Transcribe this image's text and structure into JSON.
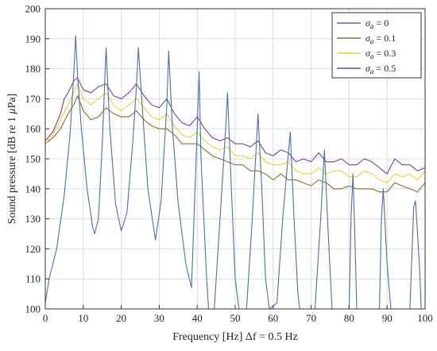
{
  "chart_data": {
    "type": "line",
    "xlabel": "Frequency [Hz] Δf = 0.5 Hz",
    "ylabel_parts": [
      "Sound pressure [dB re 1 ",
      "μ",
      "Pa]"
    ],
    "xlim": [
      0,
      100
    ],
    "ylim": [
      100,
      200
    ],
    "xticks": [
      0,
      10,
      20,
      30,
      40,
      50,
      60,
      70,
      80,
      90,
      100
    ],
    "yticks": [
      100,
      110,
      120,
      130,
      140,
      150,
      160,
      170,
      180,
      190,
      200
    ],
    "xtick_labels": [
      "0",
      "10",
      "20",
      "30",
      "40",
      "50",
      "60",
      "70",
      "80",
      "90",
      "100"
    ],
    "ytick_labels": [
      "100",
      "110",
      "120",
      "130",
      "140",
      "150",
      "160",
      "170",
      "180",
      "190",
      "200"
    ],
    "grid": true,
    "legend_position": "top-right",
    "series": [
      {
        "label_symbol": "σ",
        "label_sub": "a",
        "label_value": "= 0",
        "color": "#4a6fae",
        "points": [
          [
            0,
            102
          ],
          [
            1,
            110
          ],
          [
            3,
            120
          ],
          [
            5,
            138
          ],
          [
            6.5,
            158
          ],
          [
            7.5,
            178
          ],
          [
            8,
            191
          ],
          [
            8.5,
            178
          ],
          [
            9.5,
            160
          ],
          [
            11,
            140
          ],
          [
            12.5,
            127
          ],
          [
            13,
            125
          ],
          [
            14,
            130
          ],
          [
            15,
            155
          ],
          [
            16,
            187
          ],
          [
            17,
            160
          ],
          [
            18.5,
            135
          ],
          [
            20,
            126
          ],
          [
            21.5,
            132
          ],
          [
            23,
            155
          ],
          [
            24,
            174
          ],
          [
            24.5,
            187
          ],
          [
            25.5,
            168
          ],
          [
            27,
            140
          ],
          [
            29,
            123
          ],
          [
            30.5,
            136
          ],
          [
            32,
            168
          ],
          [
            32.5,
            186
          ],
          [
            33.5,
            160
          ],
          [
            35,
            135
          ],
          [
            37,
            115
          ],
          [
            38.5,
            107
          ],
          [
            40,
            160
          ],
          [
            40.5,
            179
          ],
          [
            41,
            150
          ],
          [
            42.5,
            110
          ],
          [
            43,
            100
          ],
          [
            44.5,
            100
          ],
          [
            46,
            130
          ],
          [
            47.5,
            160
          ],
          [
            48,
            172
          ],
          [
            49,
            140
          ],
          [
            50,
            110
          ],
          [
            51,
            100
          ],
          [
            53,
            100
          ],
          [
            54.5,
            130
          ],
          [
            56,
            165
          ],
          [
            57,
            140
          ],
          [
            58,
            110
          ],
          [
            59,
            100
          ],
          [
            61,
            102
          ],
          [
            62.5,
            130
          ],
          [
            64.5,
            159
          ],
          [
            65.5,
            130
          ],
          [
            66.5,
            105
          ],
          [
            67,
            100
          ],
          [
            71,
            100
          ],
          [
            72.5,
            130
          ],
          [
            73.5,
            153
          ],
          [
            74.5,
            125
          ],
          [
            75.5,
            100
          ],
          [
            80,
            100
          ],
          [
            80.5,
            130
          ],
          [
            81,
            145
          ],
          [
            81.5,
            125
          ],
          [
            82,
            100
          ],
          [
            88,
            100
          ],
          [
            88.5,
            130
          ],
          [
            89,
            140
          ],
          [
            90,
            115
          ],
          [
            91,
            100
          ],
          [
            96,
            100
          ],
          [
            97,
            134
          ],
          [
            97.5,
            136
          ],
          [
            98.5,
            115
          ],
          [
            99,
            100
          ]
        ]
      },
      {
        "label_symbol": "σ",
        "label_sub": "a",
        "label_value": "= 0.1",
        "color": "#8a7020",
        "points": [
          [
            0,
            155
          ],
          [
            2,
            157
          ],
          [
            4,
            160
          ],
          [
            6,
            165
          ],
          [
            7.5,
            168
          ],
          [
            8.5,
            171
          ],
          [
            10,
            166
          ],
          [
            12,
            163
          ],
          [
            14,
            164
          ],
          [
            16,
            167
          ],
          [
            18,
            165
          ],
          [
            20,
            164
          ],
          [
            22,
            164
          ],
          [
            24,
            166
          ],
          [
            26,
            163
          ],
          [
            28,
            161
          ],
          [
            30,
            160
          ],
          [
            32,
            160
          ],
          [
            34,
            158
          ],
          [
            36,
            155
          ],
          [
            38,
            155
          ],
          [
            40,
            155
          ],
          [
            42,
            153
          ],
          [
            44,
            151
          ],
          [
            46,
            150
          ],
          [
            48,
            149
          ],
          [
            50,
            148
          ],
          [
            52,
            148
          ],
          [
            54,
            146
          ],
          [
            56,
            146
          ],
          [
            58,
            145
          ],
          [
            60,
            143
          ],
          [
            62,
            145
          ],
          [
            64,
            143
          ],
          [
            66,
            143
          ],
          [
            68,
            142
          ],
          [
            70,
            141
          ],
          [
            72,
            143
          ],
          [
            74,
            142
          ],
          [
            76,
            140
          ],
          [
            78,
            140
          ],
          [
            80,
            141
          ],
          [
            82,
            140
          ],
          [
            84,
            140
          ],
          [
            86,
            140
          ],
          [
            88,
            139
          ],
          [
            90,
            139
          ],
          [
            92,
            142
          ],
          [
            94,
            141
          ],
          [
            96,
            140
          ],
          [
            98,
            139
          ],
          [
            100,
            142
          ]
        ]
      },
      {
        "label_symbol": "σ",
        "label_sub": "a",
        "label_value": "= 0.3",
        "color": "#e8d030",
        "points": [
          [
            0,
            155
          ],
          [
            2,
            158
          ],
          [
            4,
            163
          ],
          [
            6,
            168
          ],
          [
            7.5,
            172
          ],
          [
            8.5,
            175
          ],
          [
            10,
            170
          ],
          [
            12,
            168
          ],
          [
            14,
            170
          ],
          [
            16,
            172
          ],
          [
            18,
            168
          ],
          [
            20,
            166
          ],
          [
            22,
            168
          ],
          [
            24,
            170
          ],
          [
            26,
            167
          ],
          [
            28,
            164
          ],
          [
            30,
            163
          ],
          [
            32,
            165
          ],
          [
            34,
            161
          ],
          [
            36,
            158
          ],
          [
            38,
            157
          ],
          [
            40,
            159
          ],
          [
            42,
            156
          ],
          [
            44,
            154
          ],
          [
            46,
            153
          ],
          [
            48,
            154
          ],
          [
            50,
            151
          ],
          [
            52,
            151
          ],
          [
            54,
            150
          ],
          [
            56,
            152
          ],
          [
            58,
            149
          ],
          [
            60,
            148
          ],
          [
            62,
            148
          ],
          [
            64,
            149
          ],
          [
            66,
            146
          ],
          [
            68,
            145
          ],
          [
            70,
            145
          ],
          [
            72,
            147
          ],
          [
            74,
            145
          ],
          [
            76,
            146
          ],
          [
            78,
            146
          ],
          [
            80,
            144
          ],
          [
            82,
            144
          ],
          [
            84,
            146
          ],
          [
            86,
            145
          ],
          [
            88,
            143
          ],
          [
            90,
            142
          ],
          [
            92,
            145
          ],
          [
            94,
            144
          ],
          [
            96,
            145
          ],
          [
            98,
            143
          ],
          [
            100,
            146
          ]
        ]
      },
      {
        "label_symbol": "σ",
        "label_sub": "a",
        "label_value": "= 0.5",
        "color": "#7a3f9a",
        "points": [
          [
            0,
            156
          ],
          [
            2,
            159
          ],
          [
            4,
            165
          ],
          [
            5,
            170
          ],
          [
            6,
            172
          ],
          [
            7.5,
            176
          ],
          [
            8.5,
            177
          ],
          [
            10,
            173
          ],
          [
            12,
            172
          ],
          [
            14,
            174
          ],
          [
            16,
            175
          ],
          [
            18,
            171
          ],
          [
            20,
            170
          ],
          [
            22,
            172
          ],
          [
            24,
            175
          ],
          [
            26,
            171
          ],
          [
            28,
            168
          ],
          [
            30,
            167
          ],
          [
            32,
            170
          ],
          [
            34,
            165
          ],
          [
            36,
            162
          ],
          [
            38,
            161
          ],
          [
            40,
            164
          ],
          [
            42,
            160
          ],
          [
            44,
            157
          ],
          [
            46,
            156
          ],
          [
            48,
            157
          ],
          [
            50,
            155
          ],
          [
            52,
            155
          ],
          [
            54,
            154
          ],
          [
            56,
            156
          ],
          [
            58,
            152
          ],
          [
            60,
            151
          ],
          [
            62,
            153
          ],
          [
            64,
            152
          ],
          [
            66,
            149
          ],
          [
            68,
            150
          ],
          [
            70,
            149
          ],
          [
            72,
            152
          ],
          [
            74,
            149
          ],
          [
            76,
            149
          ],
          [
            78,
            150
          ],
          [
            80,
            148
          ],
          [
            82,
            148
          ],
          [
            84,
            150
          ],
          [
            86,
            149
          ],
          [
            88,
            147
          ],
          [
            90,
            145
          ],
          [
            92,
            150
          ],
          [
            94,
            148
          ],
          [
            96,
            148
          ],
          [
            98,
            146
          ],
          [
            100,
            147
          ]
        ]
      }
    ]
  }
}
